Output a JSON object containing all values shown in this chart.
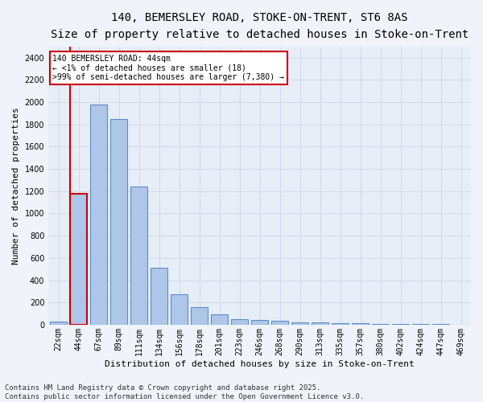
{
  "title1": "140, BEMERSLEY ROAD, STOKE-ON-TRENT, ST6 8AS",
  "title2": "Size of property relative to detached houses in Stoke-on-Trent",
  "xlabel": "Distribution of detached houses by size in Stoke-on-Trent",
  "ylabel": "Number of detached properties",
  "categories": [
    "22sqm",
    "44sqm",
    "67sqm",
    "89sqm",
    "111sqm",
    "134sqm",
    "156sqm",
    "178sqm",
    "201sqm",
    "223sqm",
    "246sqm",
    "268sqm",
    "290sqm",
    "313sqm",
    "335sqm",
    "357sqm",
    "380sqm",
    "402sqm",
    "424sqm",
    "447sqm",
    "469sqm"
  ],
  "values": [
    25,
    1175,
    1975,
    1850,
    1240,
    515,
    275,
    155,
    90,
    50,
    45,
    35,
    22,
    18,
    15,
    12,
    10,
    8,
    5,
    5,
    3
  ],
  "bar_color": "#aec6e8",
  "bar_edge_color": "#5b8fc9",
  "highlight_index": 1,
  "highlight_edge_color": "#cc0000",
  "annotation_text": "140 BEMERSLEY ROAD: 44sqm\n← <1% of detached houses are smaller (18)\n>99% of semi-detached houses are larger (7,380) →",
  "annotation_box_color": "#ffffff",
  "annotation_box_edge": "#cc0000",
  "vline_color": "#cc0000",
  "ylim": [
    0,
    2500
  ],
  "yticks": [
    0,
    200,
    400,
    600,
    800,
    1000,
    1200,
    1400,
    1600,
    1800,
    2000,
    2200,
    2400
  ],
  "grid_color": "#d0d8e8",
  "bg_color": "#e8eef8",
  "fig_bg_color": "#f0f4fa",
  "footer_text": "Contains HM Land Registry data © Crown copyright and database right 2025.\nContains public sector information licensed under the Open Government Licence v3.0.",
  "title_fontsize": 10,
  "subtitle_fontsize": 9,
  "axis_label_fontsize": 8,
  "tick_fontsize": 7,
  "footer_fontsize": 6.5
}
